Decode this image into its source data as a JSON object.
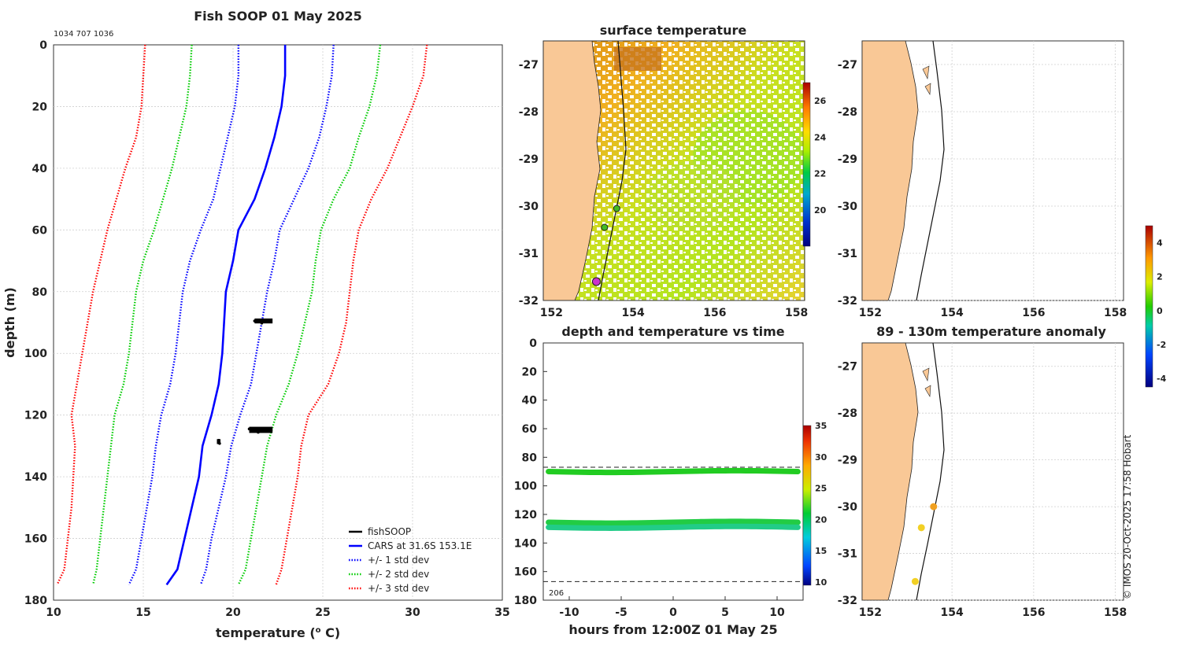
{
  "chart_data": [
    {
      "type": "line",
      "title": "Fish SOOP 01 May 2025",
      "subtitle": "1034 707 1036",
      "xlabel": "temperature (°C)",
      "ylabel": "depth (m)",
      "xlim": [
        10,
        35
      ],
      "ylim": [
        0,
        180
      ],
      "y_reversed": true,
      "xticks": [
        "10",
        "15",
        "20",
        "25",
        "30",
        "35"
      ],
      "yticks": [
        "0",
        "20",
        "40",
        "60",
        "80",
        "100",
        "120",
        "140",
        "160",
        "180"
      ],
      "grid": true,
      "legend": [
        "fishSOOP",
        "CARS at 31.6S 153.1E",
        "+/- 1 std dev",
        "+/- 2 std dev",
        "+/- 3 std dev"
      ],
      "legend_position": "bottom-right",
      "depth": [
        0,
        10,
        20,
        30,
        40,
        50,
        60,
        70,
        80,
        90,
        100,
        110,
        120,
        130,
        140,
        150,
        160,
        170,
        175
      ],
      "series": [
        {
          "name": "CARS at 31.6S 153.1E",
          "color": "#0000ff",
          "style": "solid",
          "values": [
            22.9,
            22.9,
            22.7,
            22.3,
            21.8,
            21.2,
            20.3,
            20.0,
            19.6,
            19.5,
            19.4,
            19.2,
            18.8,
            18.3,
            18.1,
            17.7,
            17.3,
            16.9,
            16.3
          ]
        },
        {
          "name": "+1 std dev",
          "color": "#0000ff",
          "style": "dotted",
          "values": [
            25.6,
            25.5,
            25.2,
            24.8,
            24.2,
            23.4,
            22.6,
            22.3,
            21.9,
            21.6,
            21.3,
            21.0,
            20.4,
            19.9,
            19.6,
            19.2,
            18.8,
            18.5,
            18.2
          ]
        },
        {
          "name": "-1 std dev",
          "color": "#0000ff",
          "style": "dotted",
          "values": [
            20.3,
            20.3,
            20.1,
            19.7,
            19.3,
            18.9,
            18.2,
            17.6,
            17.2,
            17.0,
            16.8,
            16.5,
            16.0,
            15.7,
            15.5,
            15.2,
            14.9,
            14.6,
            14.2
          ]
        },
        {
          "name": "+2 std dev",
          "color": "#00cc00",
          "style": "dotted",
          "values": [
            28.2,
            28.0,
            27.6,
            27.0,
            26.5,
            25.6,
            24.9,
            24.6,
            24.4,
            24.0,
            23.6,
            23.1,
            22.4,
            21.9,
            21.6,
            21.3,
            21.0,
            20.7,
            20.3
          ]
        },
        {
          "name": "-2 std dev",
          "color": "#00cc00",
          "style": "dotted",
          "values": [
            17.7,
            17.6,
            17.4,
            17.0,
            16.6,
            16.1,
            15.6,
            15.0,
            14.6,
            14.4,
            14.2,
            13.9,
            13.4,
            13.2,
            13.0,
            12.8,
            12.6,
            12.4,
            12.2
          ]
        },
        {
          "name": "+3 std dev",
          "color": "#ff0000",
          "style": "dotted",
          "values": [
            30.8,
            30.6,
            30.0,
            29.3,
            28.6,
            27.7,
            27.0,
            26.7,
            26.5,
            26.3,
            25.9,
            25.3,
            24.2,
            23.8,
            23.6,
            23.3,
            23.0,
            22.7,
            22.4
          ]
        },
        {
          "name": "-3 std dev",
          "color": "#ff0000",
          "style": "dotted",
          "values": [
            15.1,
            15.0,
            14.9,
            14.6,
            14.0,
            13.5,
            13.0,
            12.6,
            12.2,
            11.9,
            11.6,
            11.3,
            11.0,
            11.2,
            11.1,
            11.0,
            10.8,
            10.6,
            10.2
          ]
        }
      ],
      "fishSOOP_points": [
        [
          21.2,
          89.5
        ],
        [
          22.0,
          89.5
        ],
        [
          21.6,
          90.2
        ],
        [
          20.9,
          124.5
        ],
        [
          22.1,
          124.8
        ],
        [
          21.4,
          125.6
        ],
        [
          19.2,
          128.2
        ],
        [
          19.25,
          129.2
        ]
      ]
    },
    {
      "type": "heatmap",
      "title": "surface temperature",
      "xticks": [
        "152",
        "154",
        "156",
        "158"
      ],
      "yticks": [
        "-27",
        "-28",
        "-29",
        "-30",
        "-31",
        "-32"
      ],
      "xlim": [
        151.8,
        158.2
      ],
      "ylim": [
        -32,
        -26.5
      ],
      "colorbar_ticks": [
        "20",
        "22",
        "24",
        "26"
      ],
      "markers": [
        [
          153.6,
          -30.05
        ],
        [
          153.3,
          -30.45
        ],
        [
          153.1,
          -31.6
        ]
      ]
    },
    {
      "type": "scatter",
      "title": "depth and temperature vs time",
      "xlabel": "hours from 12:00Z 01 May 25",
      "xlim": [
        -12.5,
        12.5
      ],
      "ylim": [
        0,
        180
      ],
      "xticks": [
        "-10",
        "-5",
        "0",
        "5",
        "10"
      ],
      "yticks": [
        "0",
        "20",
        "40",
        "60",
        "80",
        "100",
        "120",
        "140",
        "160",
        "180"
      ],
      "dashed_lines": [
        87,
        167
      ],
      "annotation": "206",
      "colorbar_ticks": [
        "10",
        "15",
        "20",
        "25",
        "30",
        "35"
      ],
      "tracks": [
        {
          "depth": 90,
          "temp": 22.5
        },
        {
          "depth": 125.5,
          "temp": 21.8
        },
        {
          "depth": 129,
          "temp": 19.5
        }
      ]
    },
    {
      "type": "map",
      "title": "",
      "xticks": [
        "152",
        "154",
        "156",
        "158"
      ],
      "yticks": [
        "-27",
        "-28",
        "-29",
        "-30",
        "-31",
        "-32"
      ],
      "xlim": [
        151.8,
        158.2
      ],
      "ylim": [
        -32,
        -26.5
      ]
    },
    {
      "type": "scatter",
      "title": "89 - 130m temperature anomaly",
      "xticks": [
        "152",
        "154",
        "156",
        "158"
      ],
      "yticks": [
        "-27",
        "-28",
        "-29",
        "-30",
        "-31",
        "-32"
      ],
      "xlim": [
        151.8,
        158.2
      ],
      "ylim": [
        -32,
        -26.5
      ],
      "points": [
        {
          "lon": 153.55,
          "lat": -30.0,
          "value": 2.0
        },
        {
          "lon": 153.25,
          "lat": -30.45,
          "value": 1.5
        },
        {
          "lon": 153.1,
          "lat": -31.6,
          "value": 1.4
        }
      ],
      "colorbar_ticks": [
        "4",
        "2",
        "0",
        "-2",
        "-4"
      ]
    }
  ],
  "credit": "© IMOS 20-Oct-2025 17:58 Hobart"
}
